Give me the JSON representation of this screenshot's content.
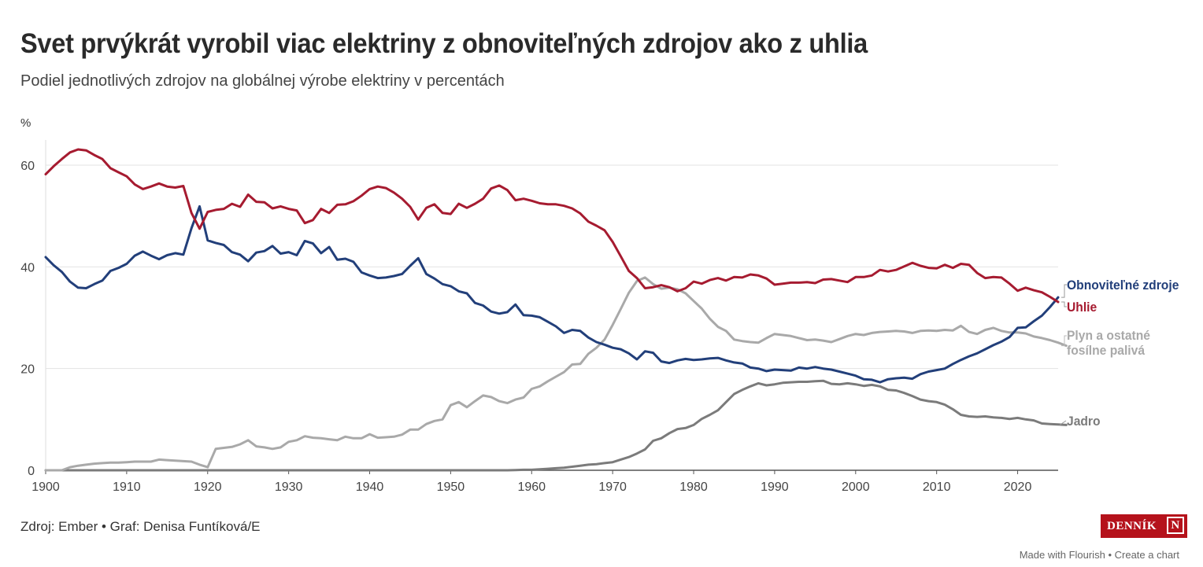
{
  "header": {
    "title": "Svet prvýkrát vyrobil viac elektriny z obnoviteľných zdrojov ako z uhlia",
    "subtitle": "Podiel jednotlivých zdrojov na globálnej výrobe elektriny v percentách"
  },
  "footer": {
    "source": "Zdroj: Ember • Graf: Denisa Funtíková/E",
    "logo_text": "DENNÍK",
    "logo_mark": "N",
    "made_with": "Made with Flourish",
    "separator": "•",
    "create_chart": "Create a chart"
  },
  "chart_data": {
    "type": "line",
    "title": "Svet prvýkrát vyrobil viac elektriny z obnoviteľných zdrojov ako z uhlia",
    "subtitle": "Podiel jednotlivých zdrojov na globálnej výrobe elektriny v percentách",
    "xlabel": "",
    "ylabel": "%",
    "xlim": [
      1900,
      2025
    ],
    "ylim": [
      0,
      65
    ],
    "grid": true,
    "legend": "inline-right",
    "x_ticks": [
      "1900",
      "1910",
      "1920",
      "1930",
      "1940",
      "1950",
      "1960",
      "1970",
      "1980",
      "1990",
      "2000",
      "2010",
      "2020"
    ],
    "y_ticks": [
      "0",
      "20",
      "40",
      "60"
    ],
    "x_start": 1900,
    "series": [
      {
        "name": "Obnoviteľné zdroje",
        "color": "#223f7a",
        "values": [
          41.9,
          40.3,
          39.0,
          37.1,
          35.9,
          35.8,
          36.6,
          37.3,
          39.2,
          39.8,
          40.6,
          42.2,
          43.0,
          42.2,
          41.5,
          42.3,
          42.7,
          42.4,
          47.6,
          51.9,
          45.2,
          44.7,
          44.3,
          42.9,
          42.4,
          41.1,
          42.8,
          43.1,
          44.1,
          42.6,
          42.9,
          42.3,
          45.1,
          44.6,
          42.7,
          43.9,
          41.4,
          41.6,
          41.0,
          38.9,
          38.3,
          37.8,
          37.9,
          38.2,
          38.6,
          40.2,
          41.7,
          38.6,
          37.7,
          36.6,
          36.2,
          35.2,
          34.8,
          32.9,
          32.4,
          31.2,
          30.8,
          31.1,
          32.6,
          30.5,
          30.4,
          30.1,
          29.2,
          28.3,
          27.0,
          27.6,
          27.4,
          26.1,
          25.2,
          24.7,
          24.1,
          23.8,
          23.0,
          21.8,
          23.4,
          23.1,
          21.4,
          21.1,
          21.6,
          21.9,
          21.7,
          21.8,
          22.0,
          22.1,
          21.6,
          21.2,
          21.0,
          20.2,
          20.0,
          19.5,
          19.8,
          19.7,
          19.6,
          20.2,
          20.0,
          20.3,
          20.0,
          19.8,
          19.4,
          19.0,
          18.6,
          17.9,
          17.8,
          17.3,
          17.9,
          18.1,
          18.2,
          18.0,
          18.9,
          19.4,
          19.7,
          20.0,
          20.9,
          21.7,
          22.4,
          23.0,
          23.8,
          24.6,
          25.3,
          26.2,
          28.0,
          28.1,
          29.3,
          30.4,
          32.1,
          34.0
        ]
      },
      {
        "name": "Uhlie",
        "color": "#a61b30",
        "values": [
          58.2,
          59.8,
          61.2,
          62.5,
          63.1,
          62.9,
          62.0,
          61.2,
          59.4,
          58.6,
          57.8,
          56.2,
          55.3,
          55.8,
          56.4,
          55.8,
          55.6,
          55.9,
          50.6,
          47.5,
          50.8,
          51.2,
          51.4,
          52.4,
          51.8,
          54.2,
          52.8,
          52.7,
          51.5,
          51.9,
          51.4,
          51.1,
          48.6,
          49.2,
          51.4,
          50.6,
          52.2,
          52.3,
          52.9,
          54.0,
          55.3,
          55.8,
          55.5,
          54.6,
          53.4,
          51.8,
          49.3,
          51.6,
          52.3,
          50.6,
          50.4,
          52.4,
          51.6,
          52.4,
          53.4,
          55.4,
          56.0,
          55.1,
          53.1,
          53.4,
          53.0,
          52.5,
          52.3,
          52.3,
          52.0,
          51.5,
          50.5,
          48.9,
          48.1,
          47.2,
          44.9,
          42.1,
          39.2,
          37.8,
          35.8,
          36.0,
          36.4,
          36.0,
          35.2,
          35.8,
          37.1,
          36.7,
          37.4,
          37.8,
          37.3,
          38.0,
          37.9,
          38.5,
          38.3,
          37.7,
          36.5,
          36.7,
          36.9,
          36.9,
          37.0,
          36.8,
          37.5,
          37.6,
          37.3,
          37.0,
          38.0,
          38.0,
          38.3,
          39.4,
          39.1,
          39.4,
          40.1,
          40.8,
          40.2,
          39.8,
          39.7,
          40.4,
          39.8,
          40.6,
          40.4,
          38.8,
          37.8,
          38.0,
          37.9,
          36.7,
          35.3,
          35.9,
          35.4,
          35.0,
          34.1,
          33.1
        ]
      },
      {
        "name": "Plyn a ostatné fosílne palivá",
        "color": "#a9a9a9",
        "values": [
          0.0,
          0.0,
          0.0,
          0.6,
          0.9,
          1.1,
          1.3,
          1.4,
          1.5,
          1.5,
          1.6,
          1.7,
          1.7,
          1.7,
          2.1,
          2.0,
          1.9,
          1.8,
          1.7,
          1.1,
          0.6,
          4.2,
          4.4,
          4.6,
          5.1,
          5.9,
          4.7,
          4.5,
          4.2,
          4.5,
          5.6,
          5.9,
          6.7,
          6.4,
          6.3,
          6.1,
          5.9,
          6.6,
          6.3,
          6.3,
          7.1,
          6.4,
          6.5,
          6.6,
          7.0,
          8.0,
          8.0,
          9.1,
          9.7,
          10.0,
          12.8,
          13.4,
          12.4,
          13.6,
          14.7,
          14.4,
          13.6,
          13.2,
          13.9,
          14.3,
          16.0,
          16.5,
          17.5,
          18.4,
          19.3,
          20.8,
          20.9,
          22.9,
          24.1,
          25.7,
          28.6,
          31.7,
          34.9,
          37.2,
          37.9,
          36.6,
          35.7,
          35.9,
          35.6,
          34.8,
          33.3,
          31.8,
          29.8,
          28.2,
          27.4,
          25.7,
          25.4,
          25.2,
          25.1,
          26.0,
          26.8,
          26.6,
          26.4,
          26.0,
          25.6,
          25.7,
          25.5,
          25.2,
          25.8,
          26.4,
          26.8,
          26.6,
          27.0,
          27.2,
          27.3,
          27.4,
          27.3,
          27.0,
          27.4,
          27.5,
          27.4,
          27.6,
          27.5,
          28.4,
          27.2,
          26.8,
          27.6,
          28.0,
          27.4,
          27.1,
          27.1,
          26.9,
          26.3,
          26.0,
          25.6,
          25.1,
          24.5
        ]
      },
      {
        "name": "Jadro",
        "color": "#7b7b7b",
        "values": [
          0.0,
          0.0,
          0.0,
          0.0,
          0.0,
          0.0,
          0.0,
          0.0,
          0.0,
          0.0,
          0.0,
          0.0,
          0.0,
          0.0,
          0.0,
          0.0,
          0.0,
          0.0,
          0.0,
          0.0,
          0.0,
          0.0,
          0.0,
          0.0,
          0.0,
          0.0,
          0.0,
          0.0,
          0.0,
          0.0,
          0.0,
          0.0,
          0.0,
          0.0,
          0.0,
          0.0,
          0.0,
          0.0,
          0.0,
          0.0,
          0.0,
          0.0,
          0.0,
          0.0,
          0.0,
          0.0,
          0.0,
          0.0,
          0.0,
          0.0,
          0.0,
          0.0,
          0.0,
          0.0,
          0.0,
          0.0,
          0.0,
          0.0,
          0.05,
          0.1,
          0.1,
          0.2,
          0.3,
          0.4,
          0.5,
          0.7,
          0.9,
          1.1,
          1.2,
          1.4,
          1.6,
          2.1,
          2.6,
          3.3,
          4.1,
          5.8,
          6.3,
          7.3,
          8.1,
          8.3,
          8.9,
          10.1,
          10.9,
          11.8,
          13.4,
          15.0,
          15.8,
          16.5,
          17.1,
          16.7,
          16.9,
          17.2,
          17.3,
          17.4,
          17.4,
          17.5,
          17.6,
          17.0,
          16.9,
          17.1,
          16.9,
          16.6,
          16.8,
          16.5,
          15.8,
          15.7,
          15.2,
          14.6,
          13.9,
          13.6,
          13.4,
          12.9,
          12.0,
          10.9,
          10.6,
          10.5,
          10.6,
          10.4,
          10.3,
          10.1,
          10.3,
          10.0,
          9.8,
          9.2,
          9.1,
          9.0,
          8.9
        ]
      }
    ],
    "labels": [
      {
        "series": "Obnoviteľné zdroje",
        "lines": [
          "Obnoviteľné zdroje"
        ]
      },
      {
        "series": "Uhlie",
        "lines": [
          "Uhlie"
        ]
      },
      {
        "series": "Plyn a ostatné fosílne palivá",
        "lines": [
          "Plyn a ostatné",
          "fosílne palivá"
        ]
      },
      {
        "series": "Jadro",
        "lines": [
          "Jadro"
        ]
      }
    ]
  }
}
